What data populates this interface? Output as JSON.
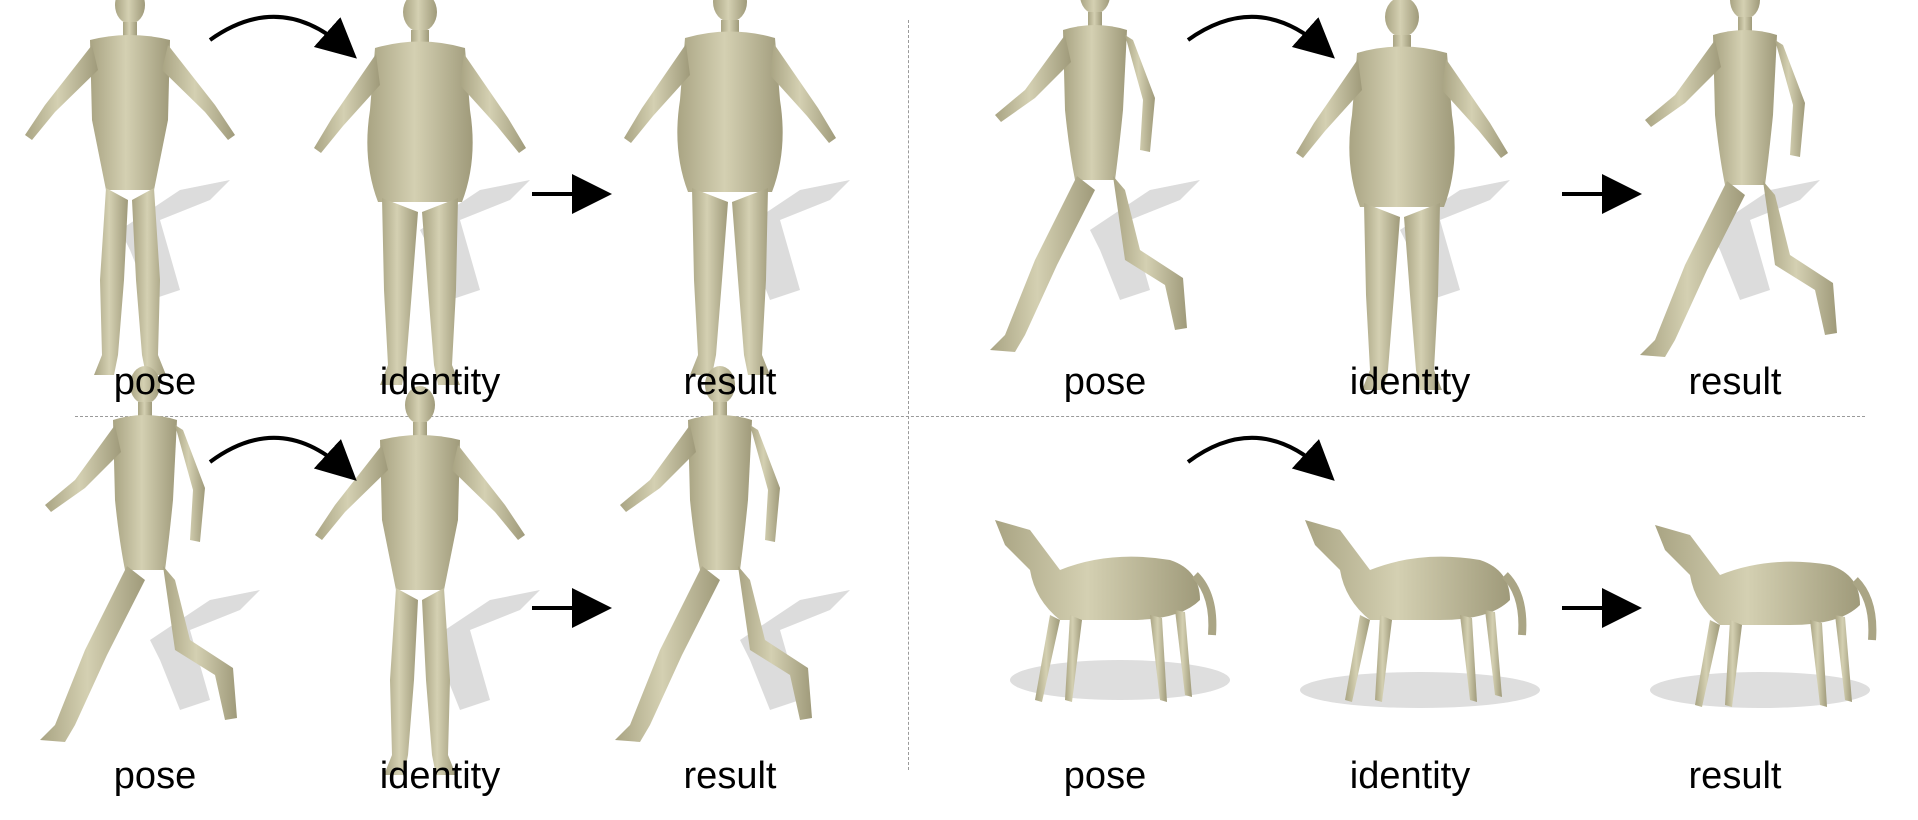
{
  "colors": {
    "mesh": "#c9c5a6",
    "mesh_shade": "#aaa585",
    "shadow": "#d9d9d9",
    "arrow": "#000000",
    "divider": "#9a9a9a"
  },
  "panels": [
    {
      "id": "top-left",
      "labels": {
        "pose": "pose",
        "identity": "identity",
        "result": "result"
      }
    },
    {
      "id": "top-right",
      "labels": {
        "pose": "pose",
        "identity": "identity",
        "result": "result"
      }
    },
    {
      "id": "bottom-left",
      "labels": {
        "pose": "pose",
        "identity": "identity",
        "result": "result"
      }
    },
    {
      "id": "bottom-right",
      "labels": {
        "pose": "pose",
        "identity": "identity",
        "result": "result"
      }
    }
  ]
}
